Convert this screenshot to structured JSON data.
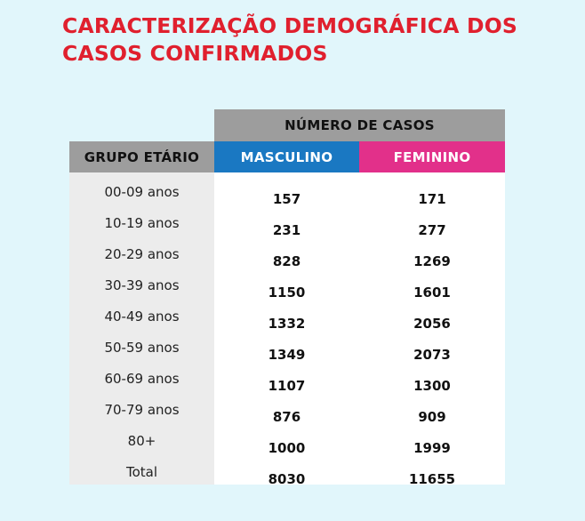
{
  "title": {
    "line1": "CARACTERIZAÇÃO DEMOGRÁFICA DOS",
    "line2": "CASOS CONFIRMADOS"
  },
  "colors": {
    "title": "#e0202e",
    "header_gray": "#9d9d9d",
    "masculino": "#1a78c2",
    "feminino": "#e2308a",
    "background": "#e1f6fb"
  },
  "table": {
    "header_cases": "NÚMERO DE CASOS",
    "header_age": "GRUPO ETÁRIO",
    "header_male": "MASCULINO",
    "header_female": "FEMININO",
    "rows": [
      {
        "age": "00-09 anos",
        "male": "157",
        "female": "171"
      },
      {
        "age": "10-19 anos",
        "male": "231",
        "female": "277"
      },
      {
        "age": "20-29 anos",
        "male": "828",
        "female": "1269"
      },
      {
        "age": "30-39 anos",
        "male": "1150",
        "female": "1601"
      },
      {
        "age": "40-49 anos",
        "male": "1332",
        "female": "2056"
      },
      {
        "age": "50-59 anos",
        "male": "1349",
        "female": "2073"
      },
      {
        "age": "60-69 anos",
        "male": "1107",
        "female": "1300"
      },
      {
        "age": "70-79 anos",
        "male": "876",
        "female": "909"
      },
      {
        "age": "80+",
        "male": "1000",
        "female": "1999"
      },
      {
        "age": "Total",
        "male": "8030",
        "female": "11655"
      }
    ]
  }
}
